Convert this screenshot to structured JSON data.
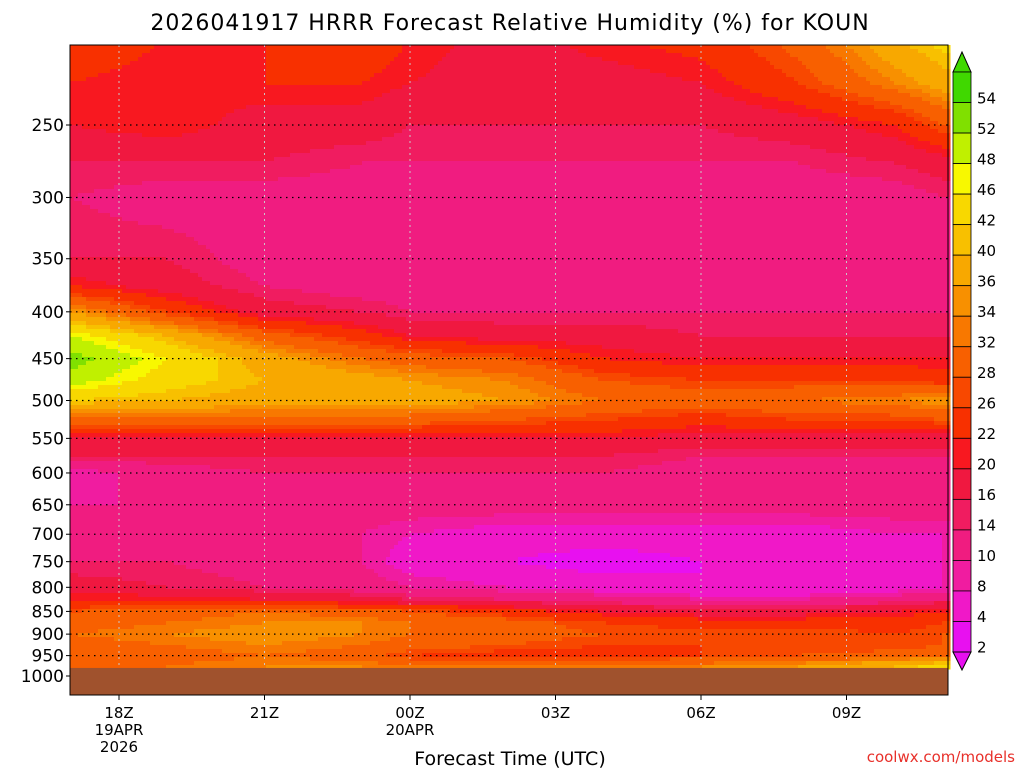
{
  "chart_data": {
    "type": "heatmap",
    "title": "2026041917 HRRR Forecast Relative Humidity (%) for KOUN",
    "xlabel": "Forecast Time (UTC)",
    "ylabel": "",
    "credit": "coolwx.com/models",
    "y_scale": "log-pressure",
    "ylim": [
      1000,
      200
    ],
    "xlim_hours": [
      -1,
      17
    ],
    "y_ticks": [
      {
        "p": 250,
        "label": "250"
      },
      {
        "p": 300,
        "label": "300"
      },
      {
        "p": 350,
        "label": "350"
      },
      {
        "p": 400,
        "label": "400"
      },
      {
        "p": 450,
        "label": "450"
      },
      {
        "p": 500,
        "label": "500"
      },
      {
        "p": 550,
        "label": "550"
      },
      {
        "p": 600,
        "label": "600"
      },
      {
        "p": 650,
        "label": "650"
      },
      {
        "p": 700,
        "label": "700"
      },
      {
        "p": 750,
        "label": "750"
      },
      {
        "p": 800,
        "label": "800"
      },
      {
        "p": 850,
        "label": "850"
      },
      {
        "p": 900,
        "label": "900"
      },
      {
        "p": 950,
        "label": "950"
      },
      {
        "p": 1000,
        "label": "1000"
      }
    ],
    "x_ticks": [
      {
        "h": 0,
        "lines": [
          "18Z",
          "19APR",
          "2026"
        ]
      },
      {
        "h": 3,
        "lines": [
          "21Z"
        ]
      },
      {
        "h": 6,
        "lines": [
          "00Z",
          "20APR"
        ]
      },
      {
        "h": 9,
        "lines": [
          "03Z"
        ]
      },
      {
        "h": 12,
        "lines": [
          "06Z"
        ]
      },
      {
        "h": 15,
        "lines": [
          "09Z"
        ]
      }
    ],
    "colorbar": {
      "labels": [
        "54",
        "52",
        "48",
        "46",
        "42",
        "40",
        "36",
        "34",
        "32",
        "28",
        "26",
        "22",
        "20",
        "16",
        "14",
        "10",
        "8",
        "4",
        "2"
      ],
      "colors": [
        "#40d800",
        "#80e000",
        "#c0f000",
        "#f8f800",
        "#f8d800",
        "#f8c000",
        "#f8a800",
        "#f89000",
        "#f87800",
        "#f86000",
        "#f84800",
        "#f83000",
        "#f81820",
        "#f01840",
        "#f01c60",
        "#f01c80",
        "#f01ca0",
        "#f018c8",
        "#e810f0"
      ],
      "top_arrow_color": "#40d800",
      "bottom_arrow_color": "#e810f0"
    },
    "ground_color": "#a0522d",
    "surface_pressure_hpa": 975,
    "levels": [
      {
        "p": 200,
        "rh": [
          26,
          22,
          22,
          26,
          22,
          18,
          22,
          24,
          30,
          40,
          44
        ]
      },
      {
        "p": 225,
        "rh": [
          22,
          20,
          22,
          22,
          20,
          18,
          18,
          20,
          26,
          34,
          38
        ]
      },
      {
        "p": 250,
        "rh": [
          20,
          22,
          18,
          18,
          16,
          16,
          16,
          16,
          18,
          22,
          28
        ]
      },
      {
        "p": 275,
        "rh": [
          16,
          16,
          16,
          14,
          14,
          14,
          14,
          14,
          14,
          16,
          18
        ]
      },
      {
        "p": 300,
        "rh": [
          14,
          12,
          12,
          12,
          10,
          12,
          12,
          12,
          12,
          12,
          14
        ]
      },
      {
        "p": 350,
        "rh": [
          16,
          16,
          12,
          12,
          12,
          12,
          12,
          12,
          12,
          12,
          10
        ]
      },
      {
        "p": 375,
        "rh": [
          22,
          18,
          14,
          12,
          12,
          12,
          12,
          12,
          12,
          12,
          12
        ]
      },
      {
        "p": 400,
        "rh": [
          36,
          26,
          18,
          16,
          14,
          14,
          14,
          14,
          14,
          14,
          14
        ]
      },
      {
        "p": 425,
        "rh": [
          48,
          40,
          30,
          24,
          20,
          18,
          18,
          16,
          16,
          16,
          16
        ]
      },
      {
        "p": 450,
        "rh": [
          54,
          46,
          38,
          32,
          30,
          28,
          22,
          20,
          20,
          20,
          20
        ]
      },
      {
        "p": 475,
        "rh": [
          50,
          44,
          40,
          38,
          36,
          34,
          28,
          26,
          26,
          26,
          24
        ]
      },
      {
        "p": 500,
        "rh": [
          42,
          40,
          38,
          38,
          38,
          36,
          32,
          30,
          32,
          34,
          36
        ]
      },
      {
        "p": 525,
        "rh": [
          30,
          30,
          30,
          30,
          30,
          28,
          26,
          24,
          26,
          26,
          28
        ]
      },
      {
        "p": 550,
        "rh": [
          20,
          20,
          20,
          20,
          20,
          20,
          20,
          18,
          18,
          18,
          18
        ]
      },
      {
        "p": 575,
        "rh": [
          16,
          16,
          16,
          16,
          16,
          16,
          16,
          14,
          14,
          14,
          14
        ]
      },
      {
        "p": 600,
        "rh": [
          8,
          12,
          14,
          14,
          14,
          14,
          14,
          12,
          12,
          12,
          12
        ]
      },
      {
        "p": 650,
        "rh": [
          10,
          10,
          12,
          12,
          12,
          12,
          12,
          12,
          12,
          12,
          12
        ]
      },
      {
        "p": 700,
        "rh": [
          12,
          12,
          12,
          10,
          8,
          6,
          6,
          6,
          6,
          8,
          8
        ]
      },
      {
        "p": 750,
        "rh": [
          14,
          14,
          12,
          10,
          6,
          4,
          2,
          4,
          4,
          6,
          8
        ]
      },
      {
        "p": 800,
        "rh": [
          18,
          16,
          14,
          12,
          10,
          8,
          6,
          4,
          4,
          6,
          8
        ]
      },
      {
        "p": 825,
        "rh": [
          22,
          22,
          20,
          18,
          16,
          14,
          12,
          10,
          10,
          12,
          14
        ]
      },
      {
        "p": 850,
        "rh": [
          28,
          30,
          32,
          30,
          28,
          24,
          20,
          18,
          18,
          20,
          22
        ]
      },
      {
        "p": 875,
        "rh": [
          30,
          32,
          34,
          34,
          32,
          30,
          26,
          24,
          24,
          24,
          26
        ]
      },
      {
        "p": 900,
        "rh": [
          32,
          34,
          36,
          34,
          32,
          30,
          28,
          28,
          28,
          26,
          28
        ]
      },
      {
        "p": 925,
        "rh": [
          30,
          32,
          34,
          32,
          30,
          28,
          26,
          26,
          26,
          26,
          28
        ]
      },
      {
        "p": 950,
        "rh": [
          28,
          30,
          32,
          30,
          26,
          24,
          24,
          26,
          28,
          30,
          32
        ]
      },
      {
        "p": 975,
        "rh": [
          30,
          32,
          34,
          34,
          32,
          32,
          32,
          34,
          36,
          40,
          44
        ]
      }
    ],
    "level_x_hours": [
      -1,
      1,
      3,
      5,
      6,
      8,
      10,
      12,
      14,
      16,
      17
    ]
  }
}
